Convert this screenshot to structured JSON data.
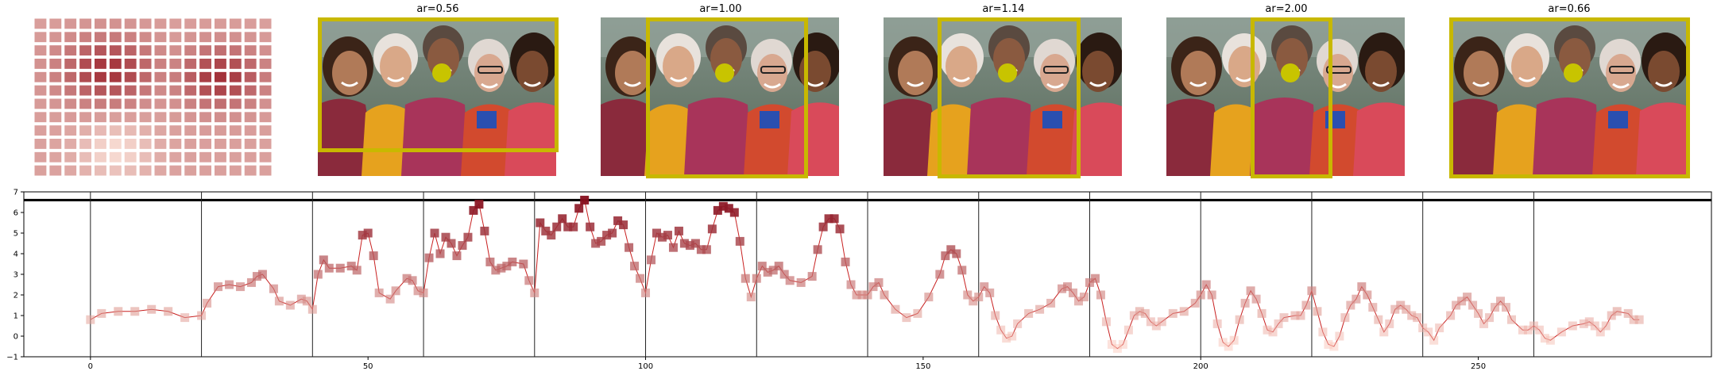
{
  "panels": [
    {
      "title": "ar=0.56"
    },
    {
      "title": "ar=1.00"
    },
    {
      "title": "ar=1.14"
    },
    {
      "title": "ar=2.00"
    },
    {
      "title": "ar=0.66"
    }
  ],
  "chart_data": {
    "type": "line",
    "xlim": [
      -12,
      292
    ],
    "ylim": [
      -1,
      7
    ],
    "xticks": [
      0,
      50,
      100,
      150,
      200,
      250
    ],
    "yticks": [
      -1,
      0,
      1,
      2,
      3,
      4,
      5,
      6,
      7
    ],
    "threshold": 6.6,
    "segment_boundaries": [
      0,
      20,
      40,
      60,
      80,
      100,
      120,
      140,
      160,
      180,
      200,
      220,
      240,
      260
    ],
    "anchors": [
      [
        0,
        0.8
      ],
      [
        2,
        1.1
      ],
      [
        5,
        1.2
      ],
      [
        8,
        1.2
      ],
      [
        11,
        1.3
      ],
      [
        14,
        1.2
      ],
      [
        17,
        0.9
      ],
      [
        20,
        1.0
      ],
      [
        21,
        1.6
      ],
      [
        23,
        2.4
      ],
      [
        25,
        2.5
      ],
      [
        27,
        2.4
      ],
      [
        29,
        2.6
      ],
      [
        30,
        2.9
      ],
      [
        31,
        3.0
      ],
      [
        33,
        2.3
      ],
      [
        34,
        1.7
      ],
      [
        36,
        1.5
      ],
      [
        38,
        1.8
      ],
      [
        39,
        1.7
      ],
      [
        40,
        1.3
      ],
      [
        41,
        3.0
      ],
      [
        42,
        3.7
      ],
      [
        43,
        3.3
      ],
      [
        45,
        3.3
      ],
      [
        47,
        3.4
      ],
      [
        48,
        3.2
      ],
      [
        49,
        4.9
      ],
      [
        50,
        5.0
      ],
      [
        51,
        3.9
      ],
      [
        52,
        2.1
      ],
      [
        54,
        1.8
      ],
      [
        55,
        2.2
      ],
      [
        57,
        2.8
      ],
      [
        58,
        2.7
      ],
      [
        59,
        2.2
      ],
      [
        60,
        2.1
      ],
      [
        61,
        3.8
      ],
      [
        62,
        5.0
      ],
      [
        63,
        4.0
      ],
      [
        64,
        4.8
      ],
      [
        65,
        4.5
      ],
      [
        66,
        3.9
      ],
      [
        67,
        4.4
      ],
      [
        68,
        4.8
      ],
      [
        69,
        6.1
      ],
      [
        70,
        6.4
      ],
      [
        71,
        5.1
      ],
      [
        72,
        3.6
      ],
      [
        73,
        3.2
      ],
      [
        74,
        3.3
      ],
      [
        75,
        3.4
      ],
      [
        76,
        3.6
      ],
      [
        78,
        3.5
      ],
      [
        79,
        2.7
      ],
      [
        80,
        2.1
      ],
      [
        81,
        5.5
      ],
      [
        82,
        5.1
      ],
      [
        83,
        4.9
      ],
      [
        84,
        5.3
      ],
      [
        85,
        5.7
      ],
      [
        86,
        5.3
      ],
      [
        87,
        5.3
      ],
      [
        88,
        6.2
      ],
      [
        89,
        6.6
      ],
      [
        90,
        5.3
      ],
      [
        91,
        4.5
      ],
      [
        92,
        4.6
      ],
      [
        93,
        4.9
      ],
      [
        94,
        5.0
      ],
      [
        95,
        5.6
      ],
      [
        96,
        5.4
      ],
      [
        97,
        4.3
      ],
      [
        98,
        3.4
      ],
      [
        99,
        2.8
      ],
      [
        100,
        2.1
      ],
      [
        101,
        3.7
      ],
      [
        102,
        5.0
      ],
      [
        103,
        4.8
      ],
      [
        104,
        4.9
      ],
      [
        105,
        4.3
      ],
      [
        106,
        5.1
      ],
      [
        107,
        4.5
      ],
      [
        108,
        4.4
      ],
      [
        109,
        4.5
      ],
      [
        110,
        4.2
      ],
      [
        111,
        4.2
      ],
      [
        112,
        5.2
      ],
      [
        113,
        6.1
      ],
      [
        114,
        6.3
      ],
      [
        115,
        6.2
      ],
      [
        116,
        6.0
      ],
      [
        117,
        4.6
      ],
      [
        118,
        2.8
      ],
      [
        119,
        1.9
      ],
      [
        120,
        2.8
      ],
      [
        121,
        3.4
      ],
      [
        122,
        3.1
      ],
      [
        123,
        3.2
      ],
      [
        124,
        3.4
      ],
      [
        125,
        3.0
      ],
      [
        126,
        2.7
      ],
      [
        128,
        2.6
      ],
      [
        130,
        2.9
      ],
      [
        131,
        4.2
      ],
      [
        132,
        5.3
      ],
      [
        133,
        5.7
      ],
      [
        134,
        5.7
      ],
      [
        135,
        5.2
      ],
      [
        136,
        3.6
      ],
      [
        137,
        2.5
      ],
      [
        138,
        2.0
      ],
      [
        139,
        2.0
      ],
      [
        140,
        2.0
      ],
      [
        141,
        2.4
      ],
      [
        142,
        2.6
      ],
      [
        143,
        2.0
      ],
      [
        145,
        1.3
      ],
      [
        147,
        0.9
      ],
      [
        149,
        1.1
      ],
      [
        151,
        1.9
      ],
      [
        153,
        3.0
      ],
      [
        154,
        3.9
      ],
      [
        155,
        4.2
      ],
      [
        156,
        4.0
      ],
      [
        157,
        3.2
      ],
      [
        158,
        2.0
      ],
      [
        159,
        1.7
      ],
      [
        160,
        1.9
      ],
      [
        161,
        2.4
      ],
      [
        162,
        2.1
      ],
      [
        163,
        1.0
      ],
      [
        164,
        0.3
      ],
      [
        165,
        -0.1
      ],
      [
        166,
        0.0
      ],
      [
        167,
        0.6
      ],
      [
        169,
        1.1
      ],
      [
        171,
        1.3
      ],
      [
        173,
        1.6
      ],
      [
        175,
        2.3
      ],
      [
        176,
        2.4
      ],
      [
        177,
        2.1
      ],
      [
        178,
        1.7
      ],
      [
        179,
        1.9
      ],
      [
        180,
        2.6
      ],
      [
        181,
        2.8
      ],
      [
        182,
        2.0
      ],
      [
        183,
        0.7
      ],
      [
        184,
        -0.4
      ],
      [
        185,
        -0.6
      ],
      [
        186,
        -0.4
      ],
      [
        187,
        0.3
      ],
      [
        188,
        1.0
      ],
      [
        189,
        1.2
      ],
      [
        190,
        1.1
      ],
      [
        191,
        0.7
      ],
      [
        192,
        0.5
      ],
      [
        193,
        0.7
      ],
      [
        195,
        1.1
      ],
      [
        197,
        1.2
      ],
      [
        199,
        1.6
      ],
      [
        200,
        2.0
      ],
      [
        201,
        2.5
      ],
      [
        202,
        2.0
      ],
      [
        203,
        0.6
      ],
      [
        204,
        -0.3
      ],
      [
        205,
        -0.5
      ],
      [
        206,
        -0.2
      ],
      [
        207,
        0.8
      ],
      [
        208,
        1.6
      ],
      [
        209,
        2.2
      ],
      [
        210,
        1.8
      ],
      [
        211,
        1.1
      ],
      [
        212,
        0.3
      ],
      [
        213,
        0.2
      ],
      [
        214,
        0.6
      ],
      [
        215,
        0.9
      ],
      [
        217,
        1.0
      ],
      [
        218,
        1.0
      ],
      [
        219,
        1.5
      ],
      [
        220,
        2.2
      ],
      [
        221,
        1.2
      ],
      [
        222,
        0.2
      ],
      [
        223,
        -0.4
      ],
      [
        224,
        -0.5
      ],
      [
        225,
        0.0
      ],
      [
        226,
        0.9
      ],
      [
        227,
        1.5
      ],
      [
        228,
        1.8
      ],
      [
        229,
        2.4
      ],
      [
        230,
        2.0
      ],
      [
        231,
        1.4
      ],
      [
        232,
        0.8
      ],
      [
        233,
        0.2
      ],
      [
        234,
        0.6
      ],
      [
        235,
        1.3
      ],
      [
        236,
        1.5
      ],
      [
        237,
        1.3
      ],
      [
        238,
        1.0
      ],
      [
        239,
        0.9
      ],
      [
        240,
        0.4
      ],
      [
        241,
        0.2
      ],
      [
        242,
        -0.2
      ],
      [
        243,
        0.4
      ],
      [
        245,
        1.0
      ],
      [
        246,
        1.5
      ],
      [
        247,
        1.7
      ],
      [
        248,
        1.9
      ],
      [
        249,
        1.5
      ],
      [
        250,
        1.1
      ],
      [
        251,
        0.6
      ],
      [
        252,
        0.9
      ],
      [
        253,
        1.4
      ],
      [
        254,
        1.7
      ],
      [
        255,
        1.4
      ],
      [
        256,
        0.8
      ],
      [
        258,
        0.3
      ],
      [
        259,
        0.3
      ],
      [
        260,
        0.5
      ],
      [
        261,
        0.3
      ],
      [
        262,
        -0.1
      ],
      [
        263,
        -0.2
      ],
      [
        265,
        0.2
      ],
      [
        267,
        0.5
      ],
      [
        269,
        0.6
      ],
      [
        270,
        0.7
      ],
      [
        271,
        0.5
      ],
      [
        272,
        0.2
      ],
      [
        273,
        0.5
      ],
      [
        274,
        1.0
      ],
      [
        275,
        1.2
      ],
      [
        277,
        1.1
      ],
      [
        278,
        0.8
      ],
      [
        279,
        0.8
      ]
    ]
  }
}
